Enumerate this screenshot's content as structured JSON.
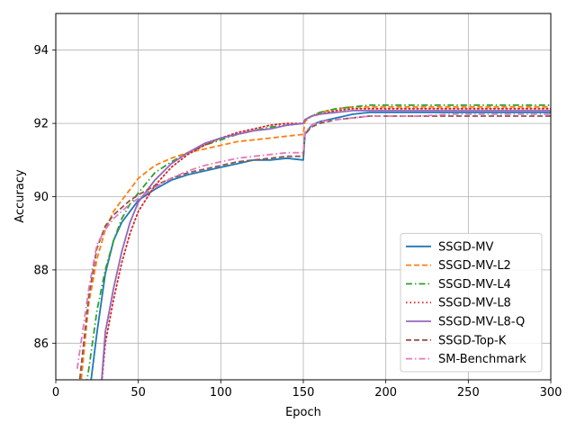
{
  "chart_data": {
    "type": "line",
    "title": "",
    "xlabel": "Epoch",
    "ylabel": "Accuracy",
    "xlim": [
      0,
      300
    ],
    "ylim": [
      85,
      95
    ],
    "xticks": [
      0,
      50,
      100,
      150,
      200,
      250,
      300
    ],
    "yticks": [
      86,
      88,
      90,
      92,
      94
    ],
    "grid": true,
    "legend_position": "lower-right",
    "series": [
      {
        "name": "SSGD-MV",
        "color": "#1f77b4",
        "dash": "solid",
        "x": [
          20,
          25,
          30,
          35,
          40,
          45,
          50,
          60,
          70,
          80,
          90,
          100,
          110,
          120,
          130,
          140,
          150,
          151,
          155,
          160,
          170,
          180,
          190,
          200,
          220,
          240,
          260,
          280,
          300
        ],
        "y": [
          84.5,
          86.3,
          87.9,
          88.8,
          89.3,
          89.6,
          89.9,
          90.2,
          90.45,
          90.6,
          90.7,
          90.8,
          90.9,
          91.0,
          91.0,
          91.05,
          91.0,
          91.7,
          91.95,
          92.05,
          92.15,
          92.25,
          92.3,
          92.3,
          92.3,
          92.3,
          92.3,
          92.3,
          92.3
        ]
      },
      {
        "name": "SSGD-MV-L2",
        "color": "#ff7f0e",
        "dash": "dashed",
        "x": [
          15,
          20,
          25,
          30,
          35,
          40,
          45,
          50,
          60,
          70,
          80,
          90,
          100,
          110,
          120,
          130,
          140,
          150,
          151,
          155,
          160,
          170,
          180,
          190,
          200,
          220,
          240,
          260,
          280,
          300
        ],
        "y": [
          84.8,
          87.1,
          88.3,
          89.1,
          89.6,
          89.9,
          90.2,
          90.5,
          90.85,
          91.05,
          91.2,
          91.3,
          91.4,
          91.5,
          91.55,
          91.6,
          91.65,
          91.7,
          92.05,
          92.2,
          92.3,
          92.4,
          92.45,
          92.45,
          92.45,
          92.45,
          92.45,
          92.45,
          92.45,
          92.45
        ]
      },
      {
        "name": "SSGD-MV-L4",
        "color": "#2ca02c",
        "dash": "dashdot",
        "x": [
          17,
          20,
          25,
          30,
          35,
          40,
          45,
          50,
          60,
          70,
          80,
          90,
          100,
          110,
          120,
          130,
          140,
          150,
          151,
          155,
          160,
          170,
          180,
          190,
          200,
          220,
          240,
          260,
          280,
          300
        ],
        "y": [
          84.5,
          85.3,
          86.9,
          88.0,
          88.8,
          89.4,
          89.8,
          90.1,
          90.65,
          90.95,
          91.2,
          91.4,
          91.55,
          91.7,
          91.8,
          91.9,
          91.95,
          92.0,
          92.1,
          92.2,
          92.3,
          92.4,
          92.45,
          92.5,
          92.5,
          92.5,
          92.5,
          92.5,
          92.5,
          92.5
        ]
      },
      {
        "name": "SSGD-MV-L8",
        "color": "#d62728",
        "dash": "dotted",
        "x": [
          27,
          30,
          35,
          40,
          45,
          50,
          60,
          70,
          80,
          90,
          100,
          110,
          120,
          130,
          140,
          150,
          151,
          155,
          160,
          170,
          180,
          190,
          200,
          220,
          240,
          260,
          280,
          300
        ],
        "y": [
          84.5,
          86.0,
          87.2,
          88.2,
          89.0,
          89.6,
          90.3,
          90.8,
          91.15,
          91.4,
          91.6,
          91.75,
          91.85,
          91.95,
          92.0,
          92.0,
          92.1,
          92.2,
          92.25,
          92.35,
          92.4,
          92.4,
          92.4,
          92.4,
          92.4,
          92.4,
          92.4,
          92.4
        ]
      },
      {
        "name": "SSGD-MV-L8-Q",
        "color": "#9467bd",
        "dash": "solid",
        "x": [
          27,
          30,
          35,
          40,
          45,
          50,
          60,
          70,
          80,
          90,
          100,
          110,
          120,
          130,
          140,
          150,
          151,
          155,
          160,
          170,
          180,
          190,
          200,
          220,
          240,
          260,
          280,
          300
        ],
        "y": [
          84.5,
          86.3,
          87.5,
          88.5,
          89.3,
          89.85,
          90.45,
          90.9,
          91.2,
          91.45,
          91.6,
          91.7,
          91.8,
          91.85,
          91.95,
          92.0,
          92.1,
          92.2,
          92.25,
          92.3,
          92.35,
          92.35,
          92.35,
          92.35,
          92.35,
          92.35,
          92.35,
          92.35
        ]
      },
      {
        "name": "SSGD-Top-K",
        "color": "#8c564b",
        "dash": "dashed",
        "x": [
          14,
          20,
          25,
          30,
          35,
          40,
          45,
          50,
          60,
          70,
          80,
          90,
          100,
          110,
          120,
          130,
          140,
          150,
          151,
          155,
          160,
          170,
          180,
          190,
          200,
          220,
          240,
          260,
          280,
          300
        ],
        "y": [
          84.8,
          87.3,
          88.6,
          89.2,
          89.5,
          89.7,
          89.9,
          90.05,
          90.3,
          90.5,
          90.65,
          90.75,
          90.85,
          90.95,
          91.0,
          91.05,
          91.1,
          91.1,
          91.7,
          91.9,
          92.0,
          92.1,
          92.15,
          92.2,
          92.2,
          92.2,
          92.2,
          92.2,
          92.2,
          92.2
        ]
      },
      {
        "name": "SM-Benchmark",
        "color": "#e377c2",
        "dash": "dashdot",
        "x": [
          13,
          20,
          25,
          30,
          35,
          40,
          45,
          50,
          60,
          70,
          80,
          90,
          100,
          110,
          120,
          130,
          140,
          150,
          151,
          155,
          160,
          170,
          180,
          190,
          200,
          220,
          240,
          260,
          280,
          300
        ],
        "y": [
          85.3,
          87.5,
          88.7,
          89.1,
          89.4,
          89.6,
          89.8,
          89.95,
          90.25,
          90.5,
          90.7,
          90.85,
          90.95,
          91.05,
          91.1,
          91.15,
          91.2,
          91.2,
          91.75,
          91.95,
          92.05,
          92.1,
          92.15,
          92.2,
          92.2,
          92.2,
          92.25,
          92.25,
          92.25,
          92.25
        ]
      }
    ]
  }
}
